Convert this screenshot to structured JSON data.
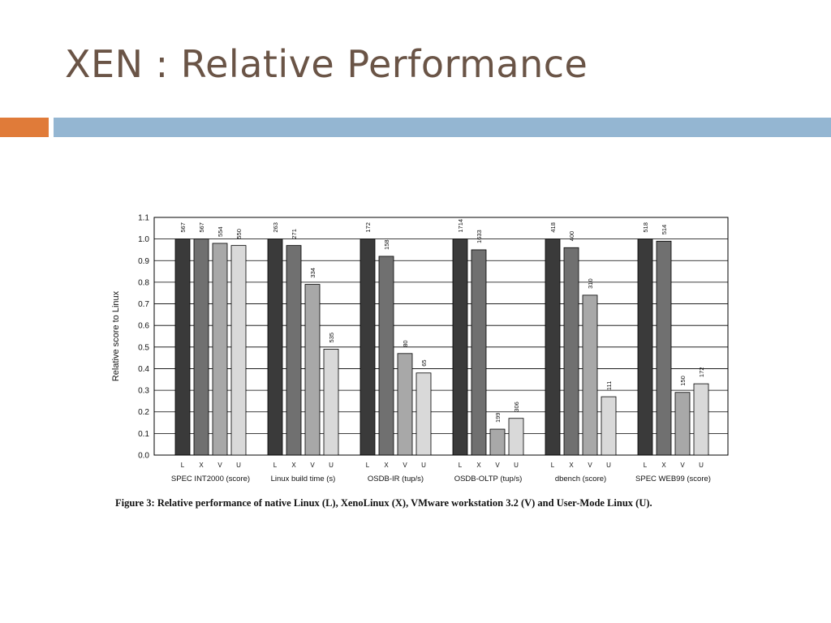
{
  "slide": {
    "title": "XEN : Relative Performance",
    "accent_color": "#e07b39",
    "band_color": "#94b6d2",
    "title_color": "#6a5446"
  },
  "figure": {
    "caption": "Figure 3: Relative performance of native Linux (L), XenoLinux (X), VMware workstation 3.2 (V) and User-Mode Linux (U)."
  },
  "chart_data": {
    "type": "bar",
    "ylabel": "Relative score to Linux",
    "ylim": [
      0.0,
      1.1
    ],
    "yticks": [
      "0.0",
      "0.1",
      "0.2",
      "0.3",
      "0.4",
      "0.5",
      "0.6",
      "0.7",
      "0.8",
      "0.9",
      "1.0",
      "1.1"
    ],
    "grid": true,
    "sub_categories": [
      "L",
      "X",
      "V",
      "U"
    ],
    "sub_colors": [
      "#3a3a3a",
      "#707070",
      "#a8a8a8",
      "#d9d9d9"
    ],
    "groups": [
      {
        "label": "SPEC INT2000 (score)",
        "values": [
          1.0,
          1.0,
          0.98,
          0.97
        ],
        "value_labels": [
          "567",
          "567",
          "554",
          "550"
        ]
      },
      {
        "label": "Linux build time (s)",
        "values": [
          1.0,
          0.97,
          0.79,
          0.49
        ],
        "value_labels": [
          "263",
          "271",
          "334",
          "535"
        ]
      },
      {
        "label": "OSDB-IR (tup/s)",
        "values": [
          1.0,
          0.92,
          0.47,
          0.38
        ],
        "value_labels": [
          "172",
          "158",
          "80",
          "65"
        ]
      },
      {
        "label": "OSDB-OLTP (tup/s)",
        "values": [
          1.0,
          0.95,
          0.12,
          0.17
        ],
        "value_labels": [
          "1714",
          "1633",
          "199",
          "306"
        ]
      },
      {
        "label": "dbench (score)",
        "values": [
          1.0,
          0.96,
          0.74,
          0.27
        ],
        "value_labels": [
          "418",
          "400",
          "310",
          "111"
        ]
      },
      {
        "label": "SPEC WEB99 (score)",
        "values": [
          1.0,
          0.99,
          0.29,
          0.33
        ],
        "value_labels": [
          "518",
          "514",
          "150",
          "172"
        ]
      }
    ]
  }
}
